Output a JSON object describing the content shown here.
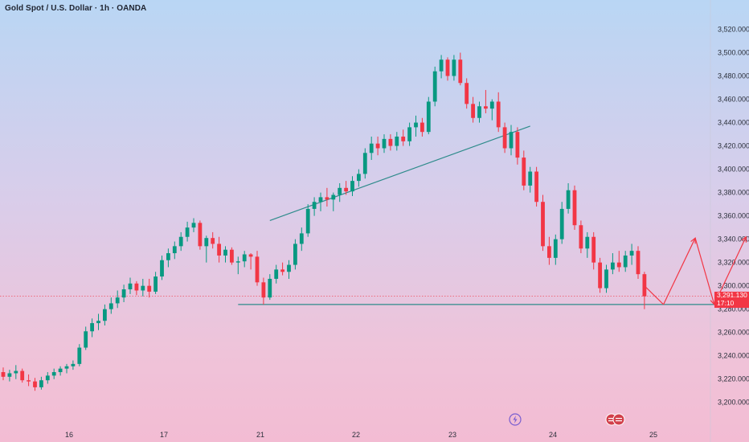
{
  "chart_data": {
    "type": "candlestick",
    "title": "Gold Spot / U.S. Dollar · 1h · OANDA",
    "current_price_label": "3,291.130",
    "countdown": "17:10",
    "ylim": [
      3195,
      3530
    ],
    "y_ticks": [
      "3,200.000",
      "3,220.000",
      "3,240.000",
      "3,260.000",
      "3,280.000",
      "3,300.000",
      "3,320.000",
      "3,340.000",
      "3,360.000",
      "3,380.000",
      "3,400.000",
      "3,420.000",
      "3,440.000",
      "3,460.000",
      "3,480.000",
      "3,500.000",
      "3,520.000"
    ],
    "x_ticks": [
      "16",
      "17",
      "21",
      "22",
      "23",
      "24",
      "25"
    ],
    "colors": {
      "up": "#089981",
      "down": "#f23645",
      "trendline": "#2e8b8b",
      "projection": "#f23645"
    },
    "current_price": 3291.13,
    "support_level": 3284,
    "candles": [
      [
        3226,
        3230,
        3219,
        3222
      ],
      [
        3222,
        3228,
        3218,
        3225
      ],
      [
        3225,
        3232,
        3220,
        3227
      ],
      [
        3227,
        3229,
        3217,
        3219
      ],
      [
        3219,
        3224,
        3214,
        3218
      ],
      [
        3218,
        3221,
        3210,
        3213
      ],
      [
        3213,
        3222,
        3211,
        3219
      ],
      [
        3219,
        3226,
        3216,
        3223
      ],
      [
        3223,
        3229,
        3220,
        3226
      ],
      [
        3226,
        3231,
        3223,
        3229
      ],
      [
        3229,
        3233,
        3225,
        3231
      ],
      [
        3231,
        3236,
        3228,
        3233
      ],
      [
        3233,
        3250,
        3231,
        3247
      ],
      [
        3247,
        3265,
        3245,
        3261
      ],
      [
        3261,
        3272,
        3256,
        3268
      ],
      [
        3268,
        3276,
        3262,
        3270
      ],
      [
        3270,
        3284,
        3266,
        3280
      ],
      [
        3280,
        3290,
        3276,
        3285
      ],
      [
        3285,
        3296,
        3281,
        3290
      ],
      [
        3290,
        3301,
        3286,
        3297
      ],
      [
        3297,
        3307,
        3293,
        3302
      ],
      [
        3302,
        3304,
        3292,
        3296
      ],
      [
        3296,
        3306,
        3291,
        3300
      ],
      [
        3300,
        3306,
        3290,
        3295
      ],
      [
        3295,
        3312,
        3293,
        3308
      ],
      [
        3308,
        3326,
        3305,
        3322
      ],
      [
        3322,
        3332,
        3316,
        3328
      ],
      [
        3328,
        3338,
        3323,
        3334
      ],
      [
        3334,
        3346,
        3330,
        3342
      ],
      [
        3342,
        3355,
        3338,
        3350
      ],
      [
        3350,
        3358,
        3346,
        3354
      ],
      [
        3354,
        3356,
        3331,
        3334
      ],
      [
        3334,
        3343,
        3320,
        3341
      ],
      [
        3341,
        3346,
        3332,
        3336
      ],
      [
        3336,
        3342,
        3320,
        3326
      ],
      [
        3326,
        3334,
        3320,
        3331
      ],
      [
        3331,
        3333,
        3318,
        3320
      ],
      [
        3320,
        3325,
        3310,
        3321
      ],
      [
        3321,
        3330,
        3316,
        3327
      ],
      [
        3327,
        3328,
        3314,
        3325
      ],
      [
        3325,
        3330,
        3300,
        3303
      ],
      [
        3303,
        3307,
        3284,
        3290
      ],
      [
        3290,
        3310,
        3288,
        3306
      ],
      [
        3306,
        3318,
        3302,
        3314
      ],
      [
        3314,
        3320,
        3309,
        3312
      ],
      [
        3312,
        3322,
        3306,
        3318
      ],
      [
        3318,
        3340,
        3314,
        3336
      ],
      [
        3336,
        3350,
        3330,
        3345
      ],
      [
        3345,
        3370,
        3342,
        3366
      ],
      [
        3366,
        3376,
        3360,
        3372
      ],
      [
        3372,
        3380,
        3364,
        3376
      ],
      [
        3376,
        3384,
        3368,
        3374
      ],
      [
        3374,
        3380,
        3364,
        3378
      ],
      [
        3378,
        3388,
        3372,
        3384
      ],
      [
        3384,
        3390,
        3378,
        3381
      ],
      [
        3381,
        3394,
        3377,
        3390
      ],
      [
        3390,
        3400,
        3385,
        3396
      ],
      [
        3396,
        3418,
        3392,
        3414
      ],
      [
        3414,
        3428,
        3408,
        3422
      ],
      [
        3422,
        3428,
        3412,
        3418
      ],
      [
        3418,
        3430,
        3414,
        3426
      ],
      [
        3426,
        3430,
        3416,
        3420
      ],
      [
        3420,
        3432,
        3416,
        3428
      ],
      [
        3428,
        3434,
        3420,
        3424
      ],
      [
        3424,
        3440,
        3420,
        3436
      ],
      [
        3436,
        3446,
        3428,
        3440
      ],
      [
        3440,
        3444,
        3428,
        3432
      ],
      [
        3432,
        3462,
        3430,
        3458
      ],
      [
        3458,
        3488,
        3454,
        3484
      ],
      [
        3484,
        3498,
        3478,
        3494
      ],
      [
        3494,
        3496,
        3476,
        3480
      ],
      [
        3480,
        3498,
        3476,
        3494
      ],
      [
        3494,
        3500,
        3472,
        3474
      ],
      [
        3474,
        3478,
        3452,
        3456
      ],
      [
        3456,
        3462,
        3440,
        3444
      ],
      [
        3444,
        3458,
        3440,
        3454
      ],
      [
        3454,
        3468,
        3448,
        3452
      ],
      [
        3452,
        3460,
        3442,
        3458
      ],
      [
        3458,
        3466,
        3432,
        3436
      ],
      [
        3436,
        3440,
        3414,
        3418
      ],
      [
        3418,
        3438,
        3412,
        3432
      ],
      [
        3432,
        3436,
        3404,
        3410
      ],
      [
        3410,
        3416,
        3382,
        3386
      ],
      [
        3386,
        3402,
        3380,
        3398
      ],
      [
        3398,
        3402,
        3368,
        3372
      ],
      [
        3372,
        3378,
        3330,
        3334
      ],
      [
        3334,
        3342,
        3318,
        3324
      ],
      [
        3324,
        3344,
        3318,
        3340
      ],
      [
        3340,
        3372,
        3336,
        3366
      ],
      [
        3366,
        3388,
        3362,
        3382
      ],
      [
        3382,
        3386,
        3348,
        3352
      ],
      [
        3352,
        3356,
        3328,
        3332
      ],
      [
        3332,
        3346,
        3324,
        3342
      ],
      [
        3342,
        3346,
        3314,
        3320
      ],
      [
        3320,
        3324,
        3294,
        3298
      ],
      [
        3298,
        3318,
        3294,
        3314
      ],
      [
        3314,
        3328,
        3310,
        3320
      ],
      [
        3320,
        3330,
        3312,
        3316
      ],
      [
        3316,
        3330,
        3312,
        3326
      ],
      [
        3326,
        3336,
        3318,
        3330
      ],
      [
        3330,
        3334,
        3306,
        3310
      ],
      [
        3310,
        3312,
        3280,
        3291
      ]
    ],
    "trendlines": [
      {
        "name": "rising-trendline",
        "from": [
          42,
          3356
        ],
        "to": [
          83,
          3437
        ]
      },
      {
        "name": "support-line",
        "from": [
          37,
          3284
        ],
        "to": [
          134,
          3284
        ]
      }
    ],
    "projection": [
      [
        101,
        3300
      ],
      [
        104,
        3284
      ],
      [
        109,
        3341
      ],
      [
        112,
        3284
      ],
      [
        117,
        3342
      ]
    ]
  }
}
